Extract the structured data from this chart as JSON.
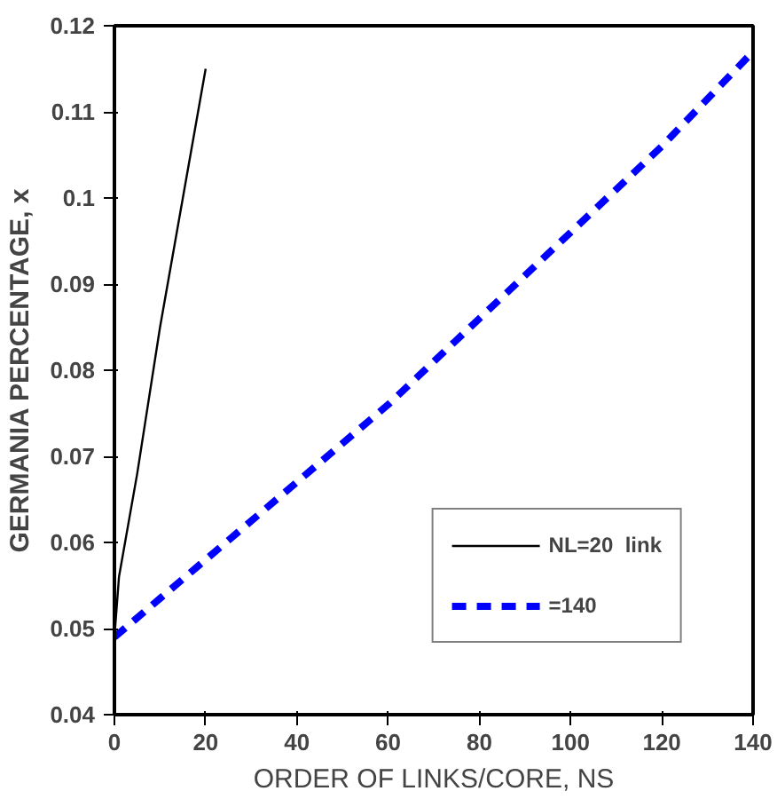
{
  "chart_data": {
    "type": "line",
    "xlabel": "ORDER OF LINKS/CORE, NS",
    "ylabel": "GERMANIA PERCENTAGE, x",
    "xlim": [
      0,
      140
    ],
    "ylim": [
      0.04,
      0.12
    ],
    "xticks": [
      0,
      20,
      40,
      60,
      80,
      100,
      120,
      140
    ],
    "yticks": [
      0.04,
      0.05,
      0.06,
      0.07,
      0.08,
      0.09,
      {
        "value": 0.1,
        "label": "0.1"
      },
      0.11,
      0.12
    ],
    "legend": "bottom right",
    "grid": false,
    "series": [
      {
        "name": "NL=20  link",
        "color": "#000000",
        "line_style": "solid",
        "x": [
          0,
          1,
          5,
          10,
          15,
          20
        ],
        "values": [
          0.049,
          0.056,
          0.068,
          0.085,
          0.1,
          0.115
        ]
      },
      {
        "name": "=140",
        "color": "#0000ff",
        "line_style": "dashed",
        "x": [
          0,
          20,
          40,
          60,
          80,
          100,
          120,
          140
        ],
        "values": [
          0.049,
          0.058,
          0.067,
          0.076,
          0.086,
          0.096,
          0.106,
          0.117
        ]
      }
    ]
  }
}
